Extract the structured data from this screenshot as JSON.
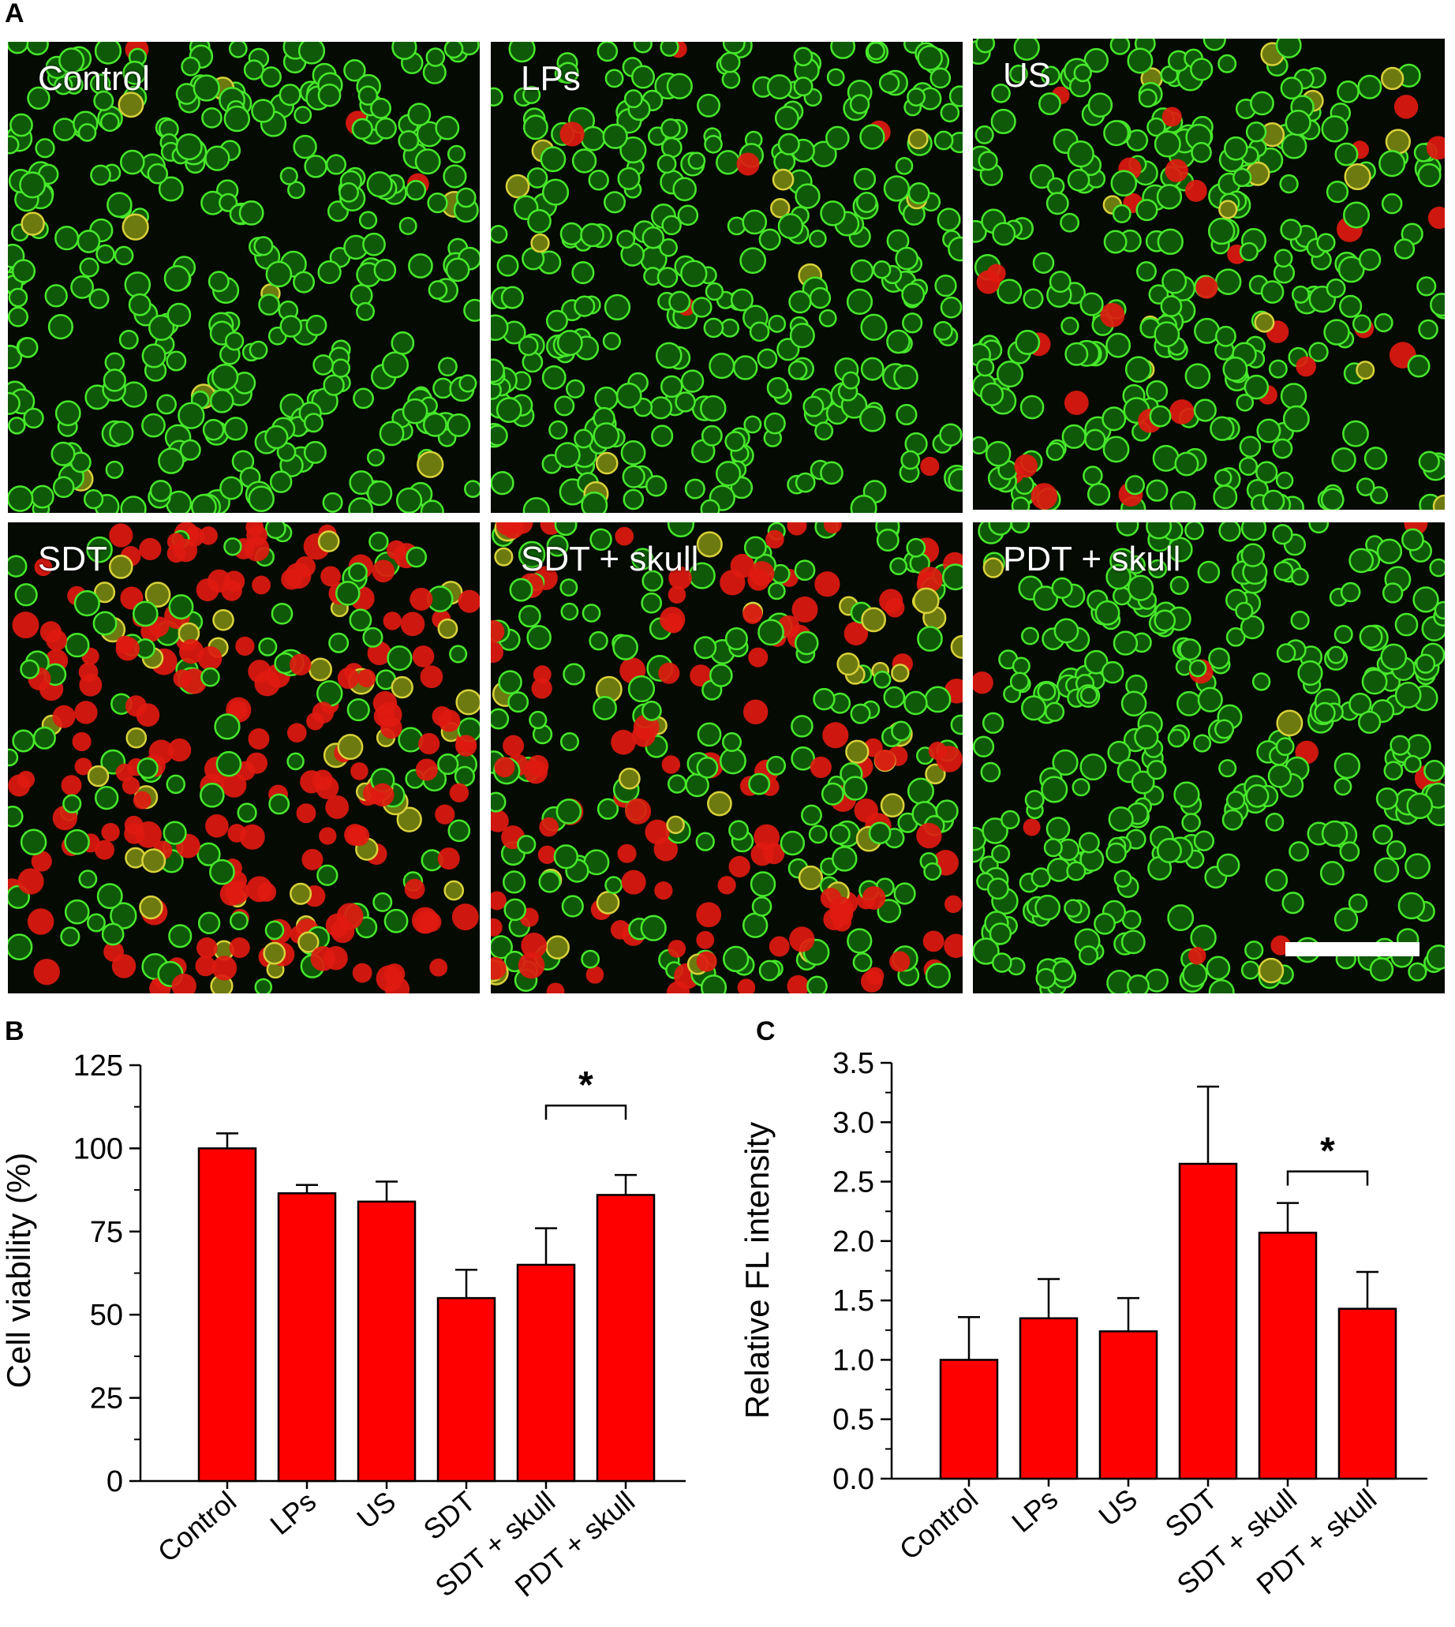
{
  "panel_labels": {
    "a": "A",
    "b": "B",
    "c": "C"
  },
  "micrographs": [
    {
      "label": "Control",
      "red_fraction": 0.02
    },
    {
      "label": "LPs",
      "red_fraction": 0.04
    },
    {
      "label": "US",
      "red_fraction": 0.08
    },
    {
      "label": "SDT",
      "red_fraction": 0.55
    },
    {
      "label": "SDT + skull",
      "red_fraction": 0.38
    },
    {
      "label": "PDT + skull",
      "red_fraction": 0.03
    }
  ],
  "chart_data": [
    {
      "type": "bar",
      "title": "",
      "xlabel": "",
      "ylabel": "Cell viability (%)",
      "ylim": [
        0,
        125
      ],
      "yticks": [
        0,
        25,
        50,
        75,
        100,
        125
      ],
      "categories": [
        "Control",
        "LPs",
        "US",
        "SDT",
        "SDT + skull",
        "PDT + skull"
      ],
      "values": [
        100,
        86.5,
        84,
        55,
        65,
        86
      ],
      "errors": [
        4.5,
        2.5,
        6,
        8.5,
        11,
        6
      ],
      "bar_color": "#ff0000",
      "significance": {
        "from": "SDT + skull",
        "to": "PDT + skull",
        "label": "*"
      }
    },
    {
      "type": "bar",
      "title": "",
      "xlabel": "",
      "ylabel": "Relative FL intensity",
      "ylim": [
        0,
        3.5
      ],
      "yticks": [
        "0.0",
        "0.5",
        "1.0",
        "1.5",
        "2.0",
        "2.5",
        "3.0",
        "3.5"
      ],
      "categories": [
        "Control",
        "LPs",
        "US",
        "SDT",
        "SDT + skull",
        "PDT + skull"
      ],
      "values": [
        1.0,
        1.35,
        1.24,
        2.65,
        2.07,
        1.43
      ],
      "errors": [
        0.36,
        0.33,
        0.28,
        0.65,
        0.25,
        0.31
      ],
      "bar_color": "#ff0000",
      "significance": {
        "from": "SDT + skull",
        "to": "PDT + skull",
        "label": "*"
      }
    }
  ]
}
